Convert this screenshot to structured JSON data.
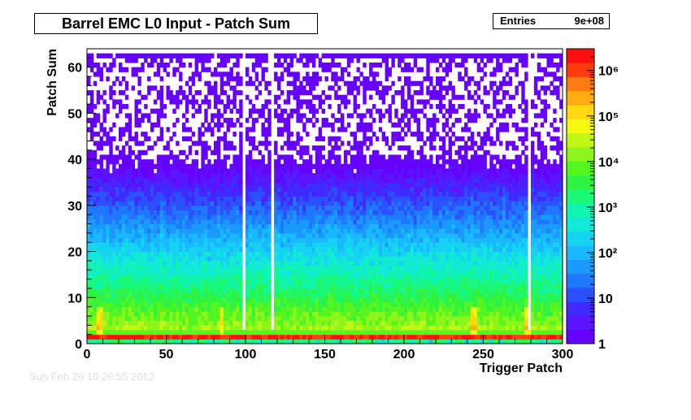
{
  "chart_data": {
    "type": "heatmap",
    "title": "Barrel EMC L0 Input - Patch Sum",
    "xlabel": "Trigger Patch",
    "ylabel": "Patch Sum",
    "xlim": [
      0,
      300
    ],
    "ylim": [
      0,
      64
    ],
    "x_ticks": [
      "0",
      "50",
      "100",
      "150",
      "200",
      "250",
      "300"
    ],
    "y_ticks": [
      "0",
      "10",
      "20",
      "30",
      "40",
      "50",
      "60"
    ],
    "z_scale": "log",
    "z_range": [
      1,
      3000000
    ],
    "z_ticks": [
      "1",
      "10",
      "10²",
      "10³",
      "10⁴",
      "10⁵",
      "10⁶"
    ],
    "stats": {
      "label": "Entries",
      "value": "9e+08"
    },
    "colors": [
      "#6600ff",
      "#5a14ff",
      "#3f2bff",
      "#2d50ff",
      "#1f78ff",
      "#1a99ff",
      "#19b8ff",
      "#16d3f2",
      "#12e9d6",
      "#10f5b0",
      "#1bf878",
      "#2ef340",
      "#55f520",
      "#8cf51a",
      "#c2f615",
      "#f4f910",
      "#ffd810",
      "#ffac10",
      "#ff7a10",
      "#ff3c10",
      "#ff0f0f"
    ],
    "features": {
      "peak_row_y": 1,
      "peak_row_value": 1500000,
      "dead_columns": [
        99,
        117,
        279
      ],
      "hot_columns": [
        7,
        8,
        85,
        244,
        278
      ]
    }
  },
  "footer": {
    "text": "Sun Feb 26 10:26:55 2012"
  }
}
